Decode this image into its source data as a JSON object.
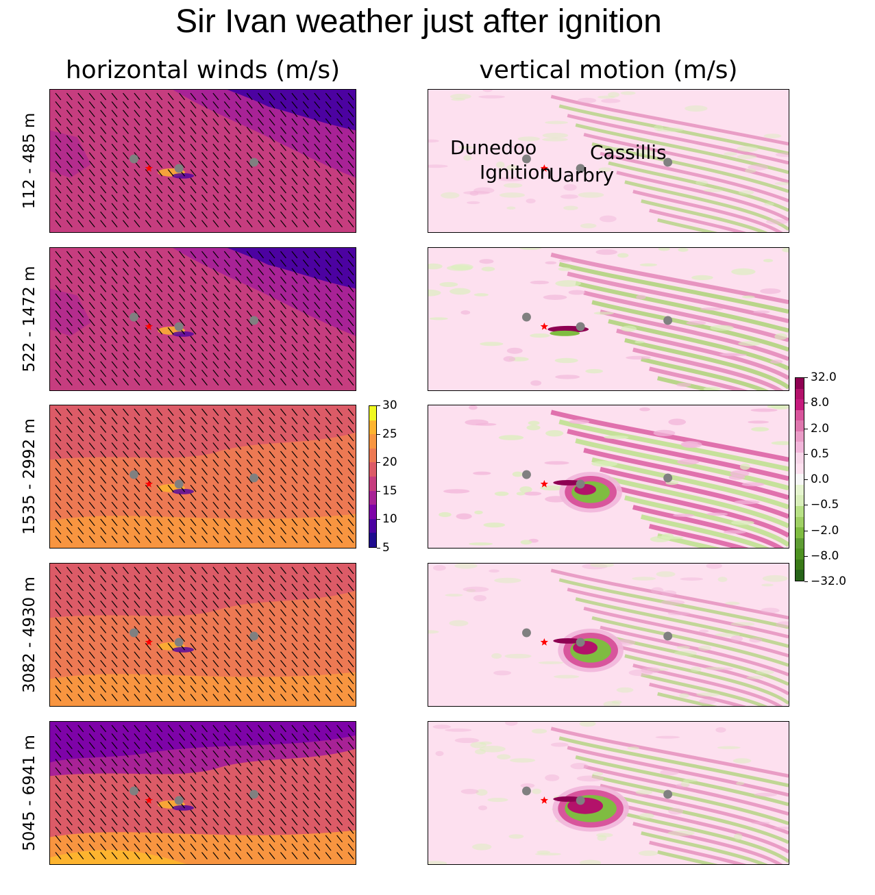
{
  "figure": {
    "title": "Sir Ivan weather just after ignition",
    "left_title": "horizontal winds (m/s)",
    "right_title": "vertical motion (m/s)"
  },
  "rows": [
    {
      "label": "112 - 485 m"
    },
    {
      "label": "522 - 1472 m"
    },
    {
      "label": "1535 - 2992 m"
    },
    {
      "label": "3082 - 4930 m"
    },
    {
      "label": "5045 - 6941 m"
    }
  ],
  "place_labels": {
    "dunedoo": "Dunedoo",
    "ignition": "Ignition",
    "uarbry": "Uarbry",
    "cassillis": "Cassillis"
  },
  "colorbars": {
    "wind": {
      "ticks": [
        "5",
        "10",
        "15",
        "20",
        "25",
        "30"
      ],
      "range": [
        5,
        30
      ],
      "colors": [
        "#1f0c8f",
        "#4c02a1",
        "#7e03a8",
        "#a82296",
        "#c63d7f",
        "#dc5b67",
        "#ed7953",
        "#f89540",
        "#fdb42f",
        "#f0f921"
      ]
    },
    "vertical": {
      "ticks": [
        "32.0",
        "8.0",
        "2.0",
        "0.5",
        "0.0",
        "−0.5",
        "−2.0",
        "−8.0",
        "−32.0"
      ],
      "colors": [
        "#8e0152",
        "#b3126a",
        "#c51b7d",
        "#d8559c",
        "#de77ae",
        "#e99cc7",
        "#f1b6da",
        "#f7d6e9",
        "#fde0ef",
        "#f7f7f7",
        "#e6f5d0",
        "#d9efbb",
        "#b8e186",
        "#9fd064",
        "#7fbc41",
        "#5e9d33",
        "#4d9221",
        "#3a7a18",
        "#276419"
      ]
    }
  },
  "chart_data": [
    {
      "type": "heatmap",
      "title": "horizontal winds (m/s)",
      "colorbar_label": "m/s",
      "colorbar_range": [
        5,
        30
      ],
      "panels": [
        {
          "row": "112 - 485 m",
          "dominant_speed": [
            13,
            16
          ],
          "low_region": "top-right",
          "low_speed": 8
        },
        {
          "row": "522 - 1472 m",
          "dominant_speed": [
            12,
            16
          ],
          "low_region": "top-right",
          "low_speed": 7
        },
        {
          "row": "1535 - 2992 m",
          "dominant_speed": [
            17,
            22
          ],
          "low_region": "top",
          "low_speed": 16
        },
        {
          "row": "3082 - 4930 m",
          "dominant_speed": [
            18,
            22
          ],
          "low_region": "top",
          "low_speed": 16
        },
        {
          "row": "5045 - 6941 m",
          "dominant_speed": [
            14,
            26
          ],
          "low_region": "top",
          "low_speed": 11
        }
      ],
      "markers": [
        "Dunedoo",
        "Ignition",
        "Uarbry",
        "Cassillis"
      ]
    },
    {
      "type": "heatmap",
      "title": "vertical motion (m/s)",
      "colorbar_ticks": [
        32.0,
        8.0,
        2.0,
        0.5,
        0.0,
        -0.5,
        -2.0,
        -8.0,
        -32.0
      ],
      "panels": [
        {
          "row": "112 - 485 m",
          "pattern": "weak waves, diagonal streaks top-right"
        },
        {
          "row": "522 - 1472 m",
          "pattern": "waves, plume updraft near Uarbry"
        },
        {
          "row": "1535 - 2992 m",
          "pattern": "strong waves, plume ring near Uarbry"
        },
        {
          "row": "3082 - 4930 m",
          "pattern": "plume ring east of ignition"
        },
        {
          "row": "5045 - 6941 m",
          "pattern": "large plume ring east of ignition"
        }
      ],
      "markers": [
        "Dunedoo",
        "Ignition",
        "Uarbry",
        "Cassillis"
      ]
    }
  ]
}
